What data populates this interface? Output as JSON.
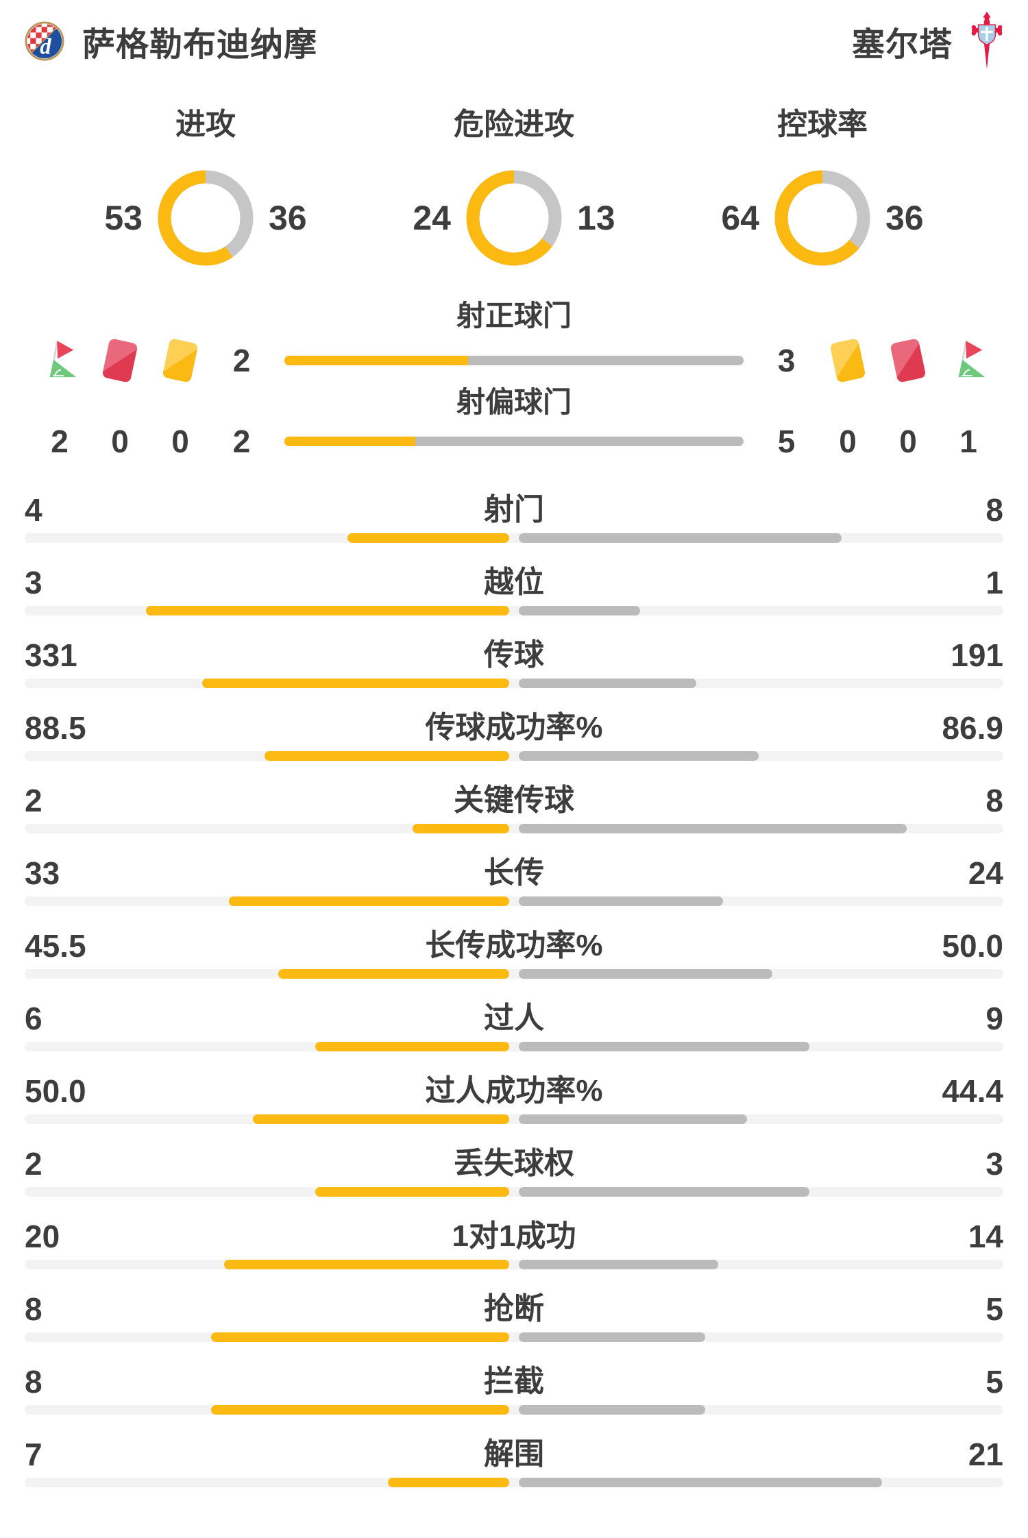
{
  "header": {
    "home_name": "萨格勒布迪纳摩",
    "away_name": "塞尔塔"
  },
  "overview": {
    "donuts": [
      {
        "label": "进攻",
        "home": 53,
        "away": 36
      },
      {
        "label": "危险进攻",
        "home": 24,
        "away": 13
      },
      {
        "label": "控球率",
        "home": 64,
        "away": 36
      }
    ]
  },
  "shots": {
    "rows": [
      {
        "label": "射正球门",
        "home": 2,
        "away": 3
      },
      {
        "label": "射偏球门",
        "home": 2,
        "away": 5
      }
    ]
  },
  "discipline": {
    "home_items": [
      {
        "icon": "corner-flag-icon",
        "value": 2
      },
      {
        "icon": "red-card-icon",
        "value": 0
      },
      {
        "icon": "yellow-card-icon",
        "value": 0
      }
    ],
    "away_items": [
      {
        "icon": "yellow-card-icon",
        "value": 0
      },
      {
        "icon": "red-card-icon",
        "value": 0
      },
      {
        "icon": "corner-flag-icon",
        "value": 1
      }
    ]
  },
  "stats": {
    "rows": [
      {
        "label": "射门",
        "home": "4",
        "away": "8"
      },
      {
        "label": "越位",
        "home": "3",
        "away": "1"
      },
      {
        "label": "传球",
        "home": "331",
        "away": "191"
      },
      {
        "label": "传球成功率%",
        "home": "88.5",
        "away": "86.9"
      },
      {
        "label": "关键传球",
        "home": "2",
        "away": "8"
      },
      {
        "label": "长传",
        "home": "33",
        "away": "24"
      },
      {
        "label": "长传成功率%",
        "home": "45.5",
        "away": "50.0"
      },
      {
        "label": "过人",
        "home": "6",
        "away": "9"
      },
      {
        "label": "过人成功率%",
        "home": "50.0",
        "away": "44.4"
      },
      {
        "label": "丢失球权",
        "home": "2",
        "away": "3"
      },
      {
        "label": "1对1成功",
        "home": "20",
        "away": "14"
      },
      {
        "label": "抢断",
        "home": "8",
        "away": "5"
      },
      {
        "label": "拦截",
        "home": "8",
        "away": "5"
      },
      {
        "label": "解围",
        "home": "7",
        "away": "21"
      }
    ]
  },
  "colors": {
    "home": "#FBB912",
    "away": "#BBBBBB",
    "donut_away": "#C6C6C6",
    "track": "#F3F3F3",
    "text": "#3D3D3D",
    "red_card": "#E03A51",
    "yellow_card": "#FBB913",
    "flag_red": "#E8445A",
    "flag_green": "#6EC97D",
    "dinamo_blue": "#1D4F9E",
    "dinamo_red": "#E0393F",
    "celta_red": "#E31C46",
    "celta_blue": "#A8CEE9"
  }
}
